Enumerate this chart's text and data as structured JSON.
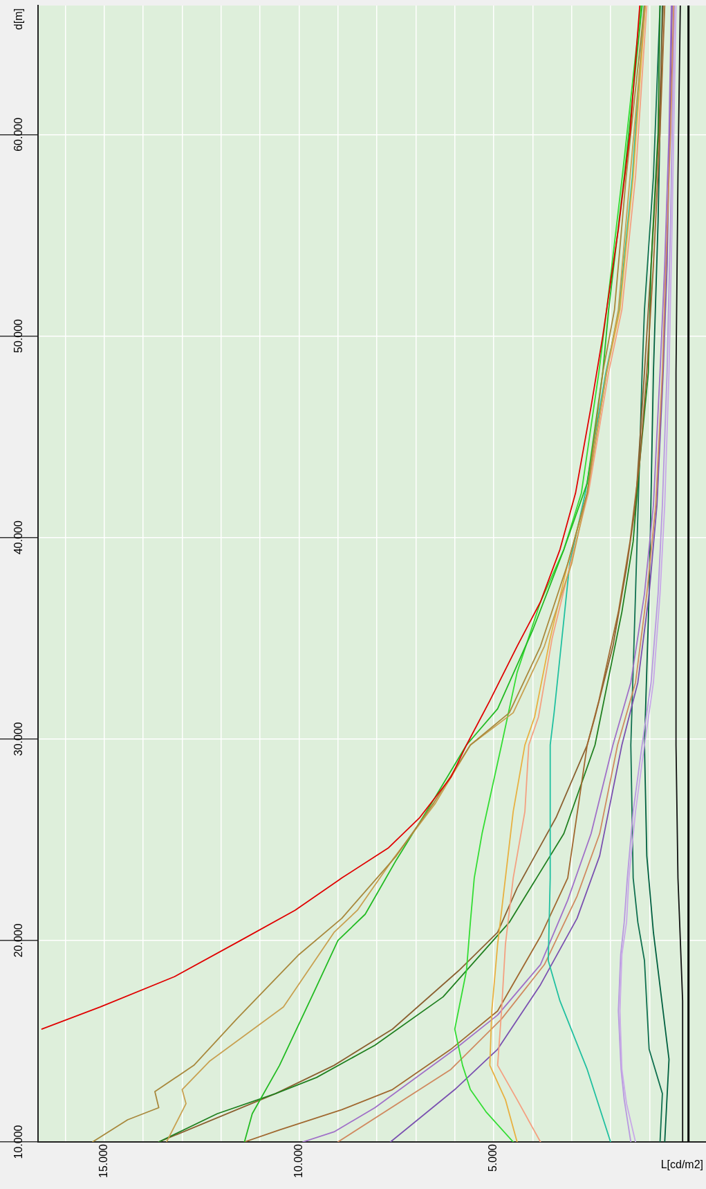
{
  "chart_data": {
    "type": "line",
    "xlabel": "L[cd/m2]",
    "ylabel": "d[m]",
    "xlim": [
      16.7,
      -0.45
    ],
    "xticks": [
      {
        "value": 16,
        "label": null
      },
      {
        "value": 15,
        "label": "15.000"
      },
      {
        "value": 14,
        "label": null
      },
      {
        "value": 13,
        "label": null
      },
      {
        "value": 12,
        "label": null
      },
      {
        "value": 11,
        "label": null
      },
      {
        "value": 10,
        "label": "10.000"
      },
      {
        "value": 9,
        "label": null
      },
      {
        "value": 8,
        "label": null
      },
      {
        "value": 7,
        "label": null
      },
      {
        "value": 6,
        "label": null
      },
      {
        "value": 5,
        "label": "5.000"
      },
      {
        "value": 4,
        "label": null
      },
      {
        "value": 3,
        "label": null
      },
      {
        "value": 2,
        "label": null
      },
      {
        "value": 1,
        "label": null
      },
      {
        "value": 0,
        "label": null
      }
    ],
    "ylim": [
      10,
      66.4
    ],
    "yticks": [
      {
        "value": 10,
        "label": "10.000"
      },
      {
        "value": 20,
        "label": "20.000"
      },
      {
        "value": 30,
        "label": "30.000"
      },
      {
        "value": 40,
        "label": "40.000"
      },
      {
        "value": 50,
        "label": "50.000"
      },
      {
        "value": 60,
        "label": "60.000"
      }
    ],
    "grid": true,
    "legend": false,
    "marker": "none",
    "line_style": "solid",
    "ref_lines": [
      {
        "axis": "x",
        "value": 0,
        "color": "#000000"
      }
    ],
    "series": [
      {
        "color": "#e00000",
        "values": [
          15.6,
          16.7,
          18.2,
          20,
          21.5,
          23.1,
          24.6,
          26.1,
          28.1,
          29.7,
          31.9,
          34.6,
          36.8,
          39.4,
          42.2,
          46.5,
          50,
          55.3,
          60.1,
          66.4
        ],
        "x": [
          16.6,
          15.1,
          13.2,
          11.5,
          10.1,
          8.9,
          7.7,
          6.9,
          6.1,
          5.7,
          5.1,
          4.4,
          3.8,
          3.3,
          2.9,
          2.5,
          2.2,
          1.8,
          1.5,
          1.25
        ]
      },
      {
        "color": "#a8883c",
        "values": [
          10,
          11.1,
          11.7,
          12.5,
          13.8,
          16.1,
          19.3,
          21.1,
          24.2,
          26.8,
          29.7,
          31.3,
          34.6,
          38.7,
          42.2,
          48.2,
          51.3,
          57.9,
          66.4
        ],
        "x": [
          15.3,
          14.4,
          13.6,
          13.7,
          12.7,
          11.6,
          10,
          8.9,
          7.5,
          6.55,
          5.6,
          4.6,
          3.8,
          3.1,
          2.6,
          2.2,
          1.9,
          1.6,
          1.13
        ]
      },
      {
        "color": "#c8a050",
        "values": [
          10,
          11.9,
          12.6,
          14,
          16.7,
          20.4,
          21.5,
          24,
          26.8,
          29.7,
          31.3,
          34.6,
          38.7,
          42.2,
          48.2,
          51.3,
          57.9,
          66.4
        ],
        "x": [
          13.4,
          12.9,
          13,
          12.3,
          10.4,
          9.1,
          8.5,
          7.6,
          6.5,
          5.6,
          4.5,
          3.7,
          3,
          2.6,
          2.1,
          1.8,
          1.5,
          1.11
        ]
      },
      {
        "color": "#22bb22",
        "values": [
          10,
          11.4,
          13.8,
          17.5,
          20,
          21.3,
          24,
          26.8,
          29.7,
          31.5,
          35.4,
          39.4,
          42.7,
          48.2,
          51.3,
          57.9,
          66.4
        ],
        "x": [
          11.4,
          11.2,
          10.5,
          9.6,
          9,
          8.3,
          7.5,
          6.6,
          5.7,
          4.9,
          4,
          3.2,
          2.6,
          2.2,
          2.05,
          1.65,
          1.19
        ]
      },
      {
        "color": "#33dd33",
        "values": [
          10,
          11.5,
          12.6,
          13.8,
          15.6,
          18.5,
          20.9,
          23.1,
          25.3,
          27.5,
          29.7,
          33.3,
          36.8,
          39.4,
          42.2,
          48.2,
          51.3,
          57.9,
          66.4
        ],
        "x": [
          4.5,
          5.2,
          5.6,
          5.8,
          6,
          5.7,
          5.6,
          5.5,
          5.3,
          5.05,
          4.8,
          4.4,
          3.8,
          3.2,
          2.75,
          2.3,
          2.1,
          1.7,
          1.22
        ]
      },
      {
        "color": "#e8b040",
        "values": [
          10,
          12.1,
          13.8,
          16.5,
          19.8,
          23.1,
          26.4,
          29.7,
          31.1,
          35,
          38.7,
          42.2,
          48.2,
          51.3,
          57.9,
          66.4
        ],
        "x": [
          4.4,
          4.7,
          5.1,
          5.05,
          4.9,
          4.7,
          4.5,
          4.2,
          3.95,
          3.55,
          3.1,
          2.6,
          2.1,
          1.76,
          1.42,
          1.11
        ]
      },
      {
        "color": "#f4a080",
        "values": [
          10,
          12.1,
          13.8,
          16.5,
          19.8,
          23.1,
          26.4,
          29.7,
          31.1,
          35,
          38.7,
          42.2,
          48.2,
          51.3,
          57.9,
          66.4
        ],
        "x": [
          3.8,
          4.4,
          4.9,
          4.8,
          4.7,
          4.5,
          4.2,
          4.1,
          3.85,
          3.5,
          3.03,
          2.57,
          2.05,
          1.71,
          1.36,
          1.07
        ]
      },
      {
        "color": "#20c0a0",
        "values": [
          10,
          13.6,
          17,
          19,
          23.1,
          29.7,
          31.3,
          35.9,
          38.7,
          42.2,
          48.2,
          51.3,
          57.9,
          66.4
        ],
        "x": [
          2,
          2.6,
          3.3,
          3.6,
          3.55,
          3.55,
          3.45,
          3.2,
          3.05,
          2.65,
          2.12,
          1.78,
          1.44,
          1.14
        ]
      },
      {
        "color": "#a06830",
        "values": [
          10,
          10.6,
          11.6,
          12.6,
          14.6,
          16.5,
          20.2,
          23.1,
          29.7,
          31.9,
          36.3,
          39.8,
          43.8,
          48.2,
          53.5,
          60.1,
          66.4
        ],
        "x": [
          11.4,
          10.5,
          8.9,
          7.6,
          6.1,
          4.9,
          3.8,
          3.1,
          2.6,
          2.3,
          1.8,
          1.5,
          1.25,
          1.07,
          0.9,
          0.73,
          0.61
        ]
      },
      {
        "color": "#208020",
        "values": [
          10,
          11.4,
          12.4,
          13.2,
          14.8,
          17.2,
          20.9,
          23.1,
          25.3,
          29.7,
          31.9,
          36.3,
          39.8,
          43.8,
          48.2,
          53.5,
          60.1,
          66.4
        ],
        "x": [
          13.6,
          12.1,
          10.6,
          9.55,
          8.05,
          6.3,
          4.6,
          3.9,
          3.2,
          2.4,
          2.17,
          1.71,
          1.42,
          1.25,
          1.03,
          0.96,
          0.78,
          0.73
        ]
      },
      {
        "color": "#8b6030",
        "values": [
          10,
          12.4,
          13.8,
          15.6,
          18.5,
          20.4,
          22.6,
          26.1,
          29.7,
          31.1,
          34.6,
          38.5,
          41.6,
          48.2,
          53.5,
          60.1,
          66.4
        ],
        "x": [
          13.6,
          10.6,
          9.1,
          7.6,
          5.9,
          4.9,
          4.4,
          3.4,
          2.6,
          2.4,
          1.94,
          1.59,
          1.36,
          1.13,
          0.96,
          0.76,
          0.65
        ]
      },
      {
        "color": "#a070c8",
        "values": [
          10,
          10.5,
          11.7,
          14.6,
          16.3,
          18.8,
          22,
          25.3,
          29.7,
          32.8,
          37.2,
          41.6,
          48.2,
          53.5,
          60.1,
          66.4
        ],
        "x": [
          9.9,
          9.1,
          8.05,
          6,
          4.9,
          3.8,
          3.1,
          2.5,
          1.94,
          1.48,
          1.13,
          0.9,
          0.73,
          0.61,
          0.5,
          0.44
        ]
      },
      {
        "color": "#d08a60",
        "values": [
          10,
          13.6,
          16.1,
          18.8,
          22.2,
          25.3,
          29.7,
          32.8,
          37.2,
          41.6,
          48.2,
          53.5,
          60.1,
          66.4
        ],
        "x": [
          9,
          6.1,
          4.8,
          3.7,
          2.86,
          2.28,
          1.82,
          1.36,
          1.07,
          0.84,
          0.67,
          0.58,
          0.46,
          0.38
        ]
      },
      {
        "color": "#7a50b0",
        "values": [
          10,
          12.6,
          14.6,
          17.8,
          21.1,
          24.2,
          29.7,
          32.8,
          37.2,
          41.6,
          48.2,
          53.5,
          66.4
        ],
        "x": [
          7.65,
          6,
          4.9,
          3.8,
          2.86,
          2.28,
          1.71,
          1.3,
          1.01,
          0.81,
          0.65,
          0.55,
          0.42
        ]
      },
      {
        "color": "#c8a8e8",
        "values": [
          10,
          11.9,
          13.6,
          16.5,
          19.3,
          20.9,
          23.1,
          26.4,
          29.7,
          32.8,
          37.2,
          41.6,
          48.2,
          55.7,
          66.4
        ],
        "x": [
          1.36,
          1.59,
          1.71,
          1.76,
          1.71,
          1.59,
          1.53,
          1.36,
          1.13,
          0.9,
          0.73,
          0.61,
          0.5,
          0.42,
          0.32
        ]
      },
      {
        "color": "#b898e0",
        "values": [
          10,
          12.1,
          13.6,
          16.5,
          19.3,
          20.9,
          23.1,
          26.4,
          29.7,
          32.8,
          37.2,
          41.6,
          48.2,
          55.7,
          66.4
        ],
        "x": [
          1.48,
          1.65,
          1.73,
          1.8,
          1.74,
          1.65,
          1.57,
          1.42,
          1.19,
          0.96,
          0.78,
          0.67,
          0.55,
          0.46,
          0.36
        ]
      },
      {
        "color": "#107050",
        "values": [
          10,
          12.4,
          14.6,
          19,
          20.9,
          23.1,
          29.7,
          37.2,
          48.2,
          51.3,
          57.9,
          66.4
        ],
        "x": [
          0.73,
          0.67,
          1.01,
          1.13,
          1.3,
          1.42,
          1.48,
          1.36,
          1.19,
          1.13,
          0.9,
          0.73
        ]
      },
      {
        "color": "#006040",
        "values": [
          10,
          14.1,
          20.4,
          24.2,
          29.7,
          37.2,
          48.2,
          55.7,
          66.4
        ],
        "x": [
          0.61,
          0.5,
          0.9,
          1.07,
          1.13,
          1.01,
          0.9,
          0.78,
          0.67
        ]
      },
      {
        "color": "#101010",
        "values": [
          10,
          17,
          23.1,
          29.7,
          48.2,
          57.9,
          66.4
        ],
        "x": [
          0.15,
          0.15,
          0.27,
          0.32,
          0.32,
          0.27,
          0.21
        ]
      }
    ]
  }
}
